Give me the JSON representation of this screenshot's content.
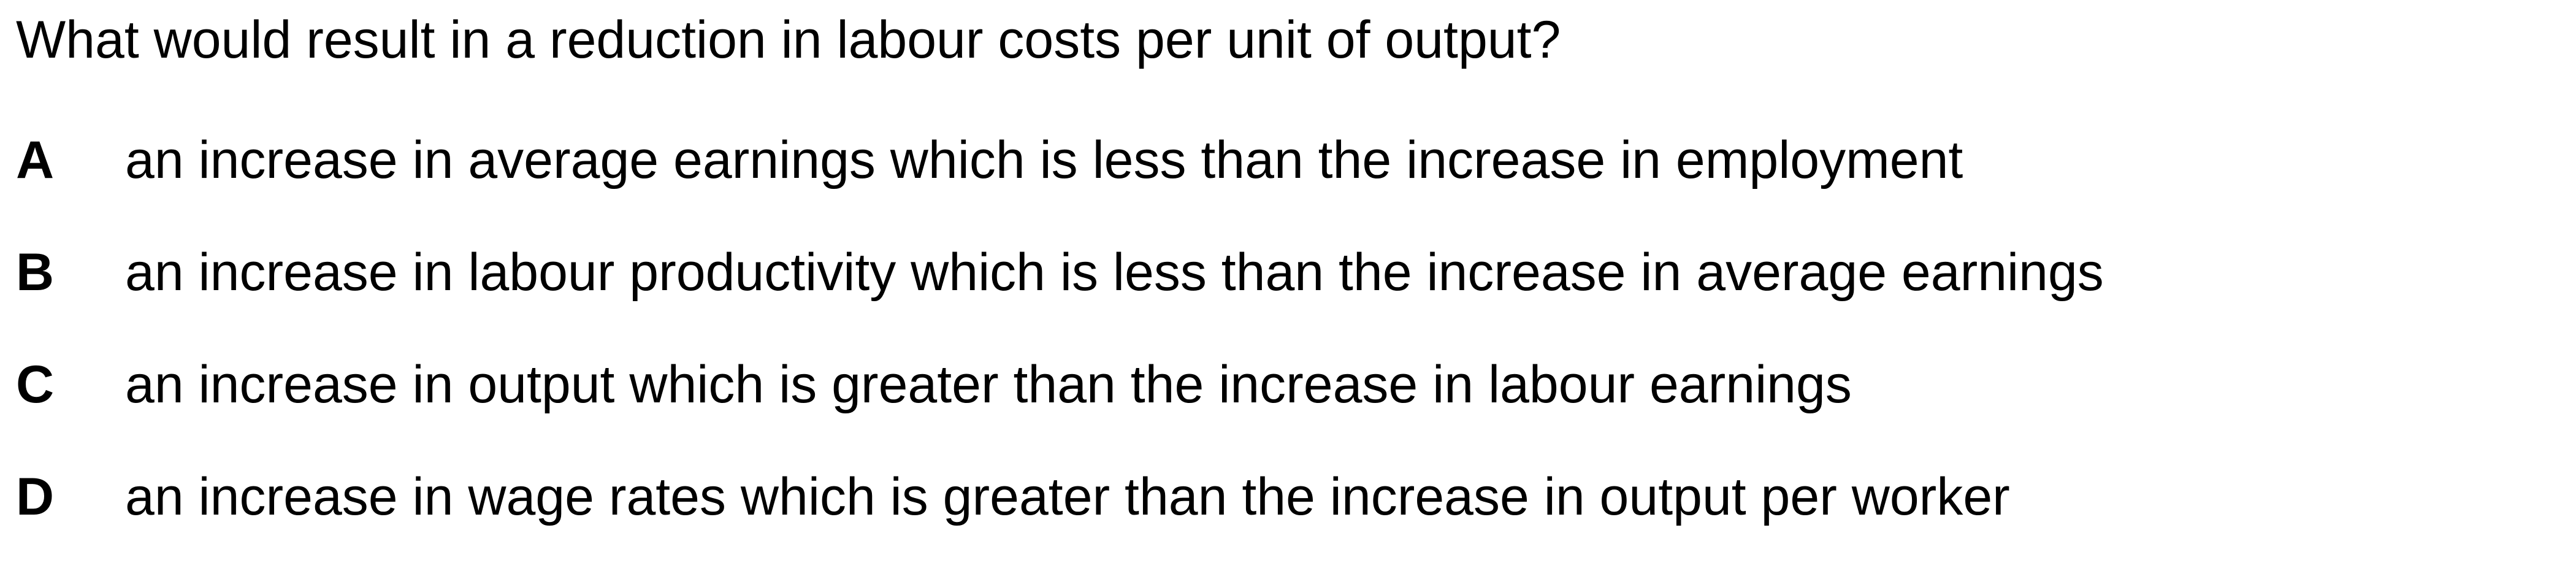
{
  "question": {
    "text": "What would result in a reduction in labour costs per unit of output?"
  },
  "options": [
    {
      "letter": "A",
      "text": "an increase in average earnings which is less than the increase in employment"
    },
    {
      "letter": "B",
      "text": "an increase in labour productivity which is less than the increase in average earnings"
    },
    {
      "letter": "C",
      "text": "an increase in output which is greater than the increase in labour earnings"
    },
    {
      "letter": "D",
      "text": "an increase in wage rates which is greater than the increase in output per worker"
    }
  ]
}
